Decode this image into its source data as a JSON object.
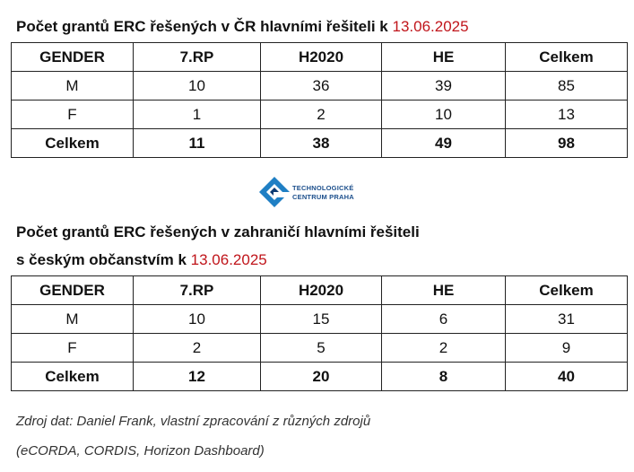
{
  "table1": {
    "title": "Počet grantů ERC řešených v ČR hlavními řešiteli k ",
    "date": "13.06.2025",
    "header": [
      "GENDER",
      "7.RP",
      "H2020",
      "HE",
      "Celkem"
    ],
    "rows": [
      [
        "M",
        10,
        36,
        39,
        85
      ],
      [
        "F",
        1,
        2,
        10,
        13
      ],
      [
        "Celkem",
        11,
        38,
        49,
        98
      ]
    ]
  },
  "logo": {
    "line1": "TECHNOLOGICKÉ",
    "line2": "CENTRUM PRAHA"
  },
  "table2": {
    "title_line1": "Počet grantů ERC řešených v zahraničí hlavními řešiteli",
    "title_line2": "s českým občanstvím k ",
    "date": "13.06.2025",
    "header": [
      "GENDER",
      "7.RP",
      "H2020",
      "HE",
      "Celkem"
    ],
    "rows": [
      [
        "M",
        10,
        15,
        6,
        31
      ],
      [
        "F",
        2,
        5,
        2,
        9
      ],
      [
        "Celkem",
        12,
        20,
        8,
        40
      ]
    ]
  },
  "source": {
    "line1": "Zdroj dat: Daniel Frank, vlastní zpracování z různých zdrojů",
    "line2": "(eCORDA, CORDIS, Horizon Dashboard)"
  }
}
